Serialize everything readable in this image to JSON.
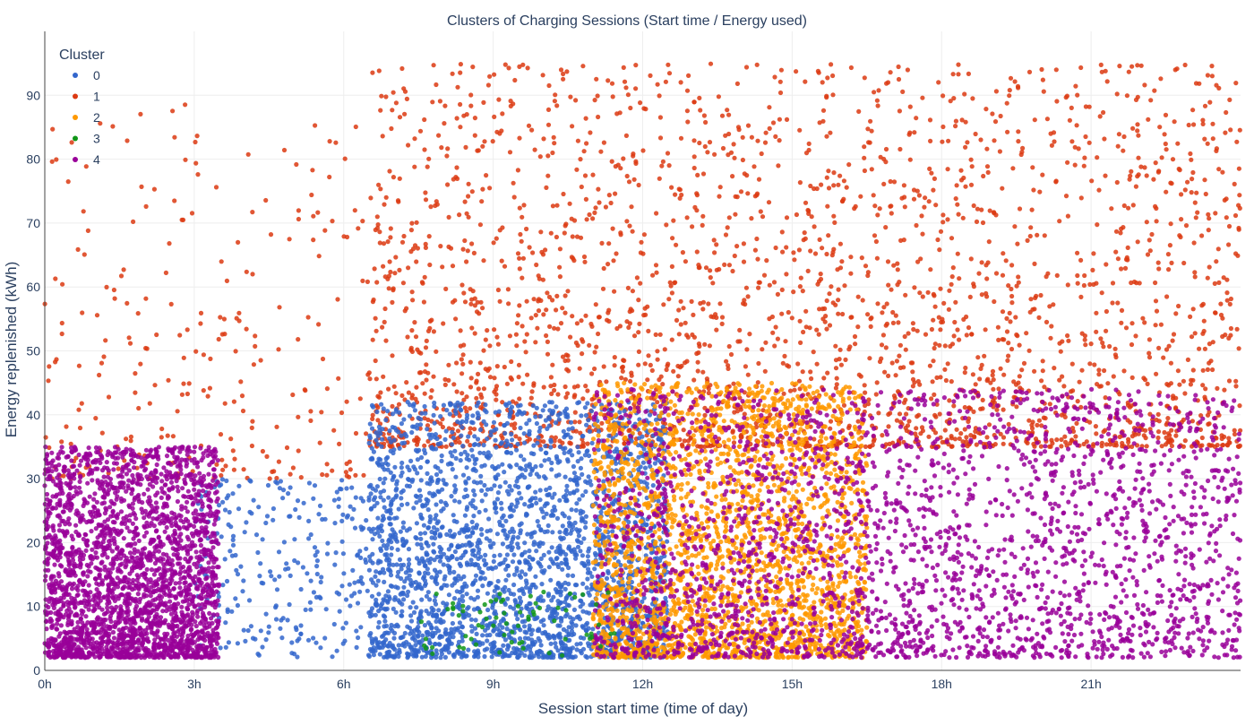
{
  "chart_data": {
    "type": "scatter",
    "title": "Clusters of Charging Sessions (Start time / Energy used)",
    "xlabel": "Session start time (time of day)",
    "ylabel": "Energy replenished (kWh)",
    "xlim": [
      0,
      24
    ],
    "ylim": [
      0,
      100
    ],
    "x_ticks": [
      0,
      3,
      6,
      9,
      12,
      15,
      18,
      21
    ],
    "x_tick_labels": [
      "0h",
      "3h",
      "6h",
      "9h",
      "12h",
      "15h",
      "18h",
      "21h"
    ],
    "y_ticks": [
      0,
      10,
      20,
      30,
      40,
      50,
      60,
      70,
      80,
      90
    ],
    "y_tick_labels": [
      "0",
      "10",
      "20",
      "30",
      "40",
      "50",
      "60",
      "70",
      "80",
      "90"
    ],
    "grid": true,
    "legend": {
      "title": "Cluster",
      "position": "top-left"
    },
    "series": [
      {
        "name": "0",
        "color": "#3366cc",
        "regions": [
          {
            "x": [
              6.5,
              12.5
            ],
            "y": [
              2,
              42
            ],
            "density": "high"
          },
          {
            "x": [
              3,
              6.5
            ],
            "y": [
              2,
              30
            ],
            "density": "low"
          }
        ]
      },
      {
        "name": "1",
        "color": "#dc3912",
        "regions": [
          {
            "x": [
              6.5,
              24
            ],
            "y": [
              35,
              95
            ],
            "density": "high"
          },
          {
            "x": [
              0,
              6.5
            ],
            "y": [
              30,
              90
            ],
            "density": "low"
          }
        ]
      },
      {
        "name": "2",
        "color": "#ff9900",
        "regions": [
          {
            "x": [
              11,
              16.5
            ],
            "y": [
              2,
              45
            ],
            "density": "high"
          }
        ]
      },
      {
        "name": "3",
        "color": "#109618",
        "regions": [
          {
            "x": [
              7.5,
              11.5
            ],
            "y": [
              2,
              13
            ],
            "density": "sparse"
          }
        ]
      },
      {
        "name": "4",
        "color": "#990099",
        "regions": [
          {
            "x": [
              11,
              24
            ],
            "y": [
              2,
              44
            ],
            "density": "high"
          },
          {
            "x": [
              0,
              3.5
            ],
            "y": [
              2,
              35
            ],
            "density": "high"
          }
        ]
      }
    ]
  }
}
